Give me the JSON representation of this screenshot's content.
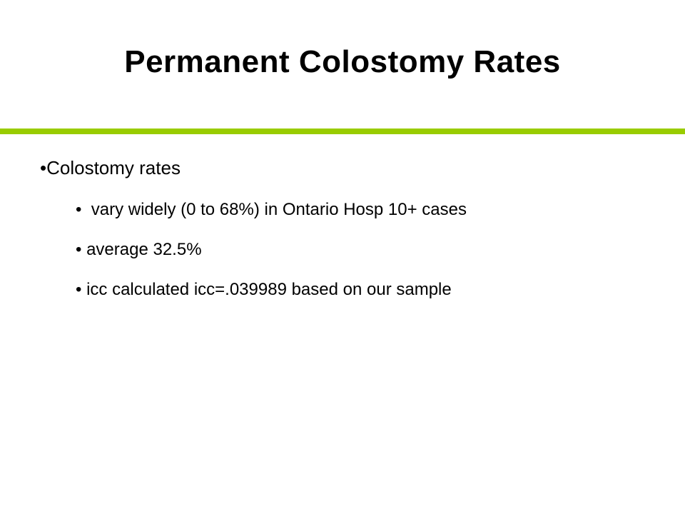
{
  "slide": {
    "title": "Permanent Colostomy Rates",
    "bullets": [
      {
        "text": "Colostomy rates",
        "items": [
          " vary widely (0 to 68%) in Ontario Hosp 10+ cases",
          "average 32.5%",
          "icc calculated icc=.039989 based on our sample"
        ]
      }
    ]
  }
}
